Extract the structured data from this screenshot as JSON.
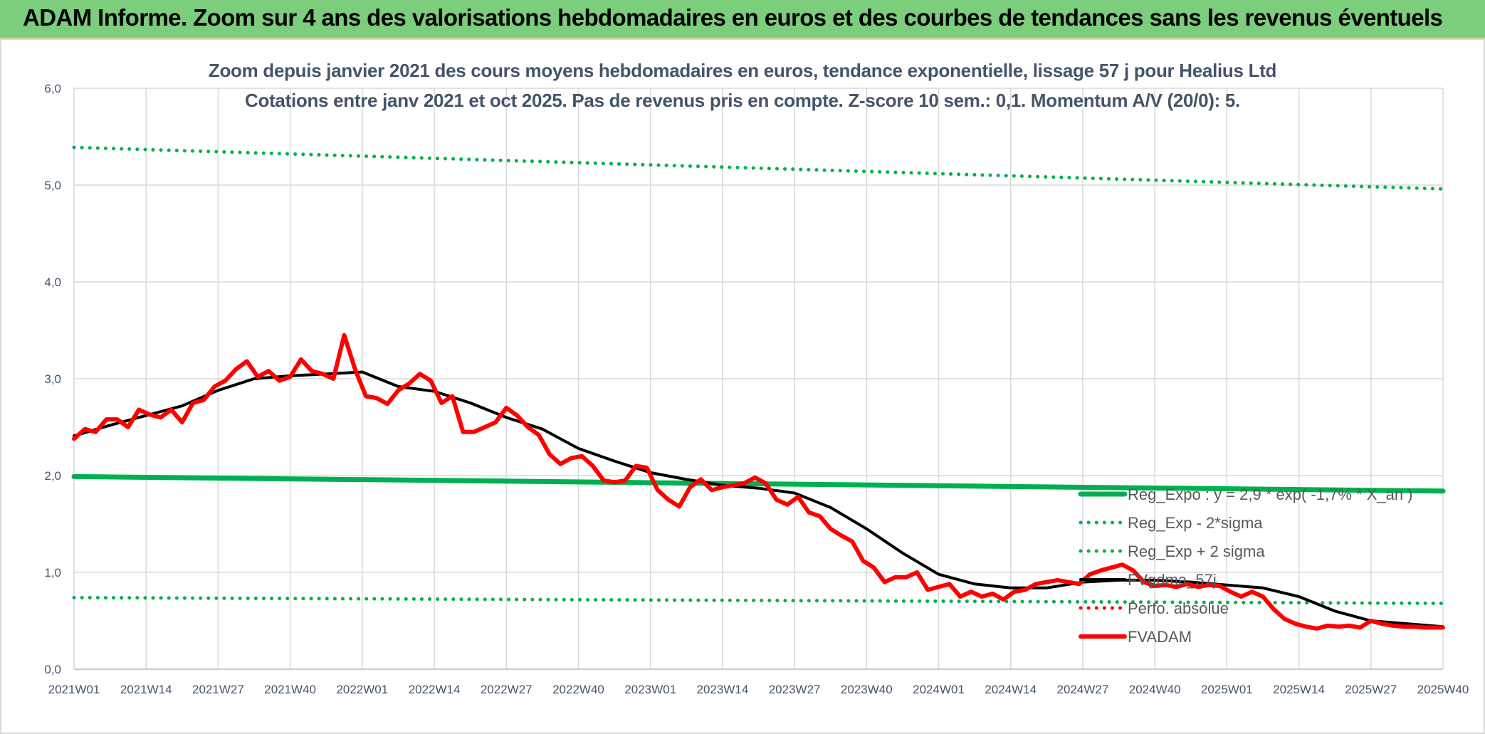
{
  "banner": {
    "title": "ADAM Informe. Zoom sur 4 ans des valorisations hebdomadaires en euros et des courbes de tendances sans les revenus éventuels"
  },
  "chart_data": {
    "type": "line",
    "title": "Zoom depuis janvier 2021 des cours moyens hebdomadaires en euros, tendance exponentielle, lissage 57 j pour Healius Ltd",
    "subtitle": "Cotations entre janv 2021 et oct 2025. Pas de revenus pris en compte. Z-score 10 sem.: 0,1. Momentum A/V (20/0): 5.",
    "xlabel": "",
    "ylabel": "",
    "ylim": [
      0,
      6
    ],
    "y_ticks": [
      "0,0",
      "1,0",
      "2,0",
      "3,0",
      "4,0",
      "5,0",
      "6,0"
    ],
    "categories": [
      "2021W01",
      "2021W14",
      "2021W27",
      "2021W40",
      "2022W01",
      "2022W14",
      "2022W27",
      "2022W40",
      "2023W01",
      "2023W14",
      "2023W27",
      "2023W40",
      "2024W01",
      "2024W14",
      "2024W27",
      "2024W40",
      "2025W01",
      "2025W14",
      "2025W27",
      "2025W40"
    ],
    "grid": true,
    "legend_position": "bottom-right",
    "series": [
      {
        "name": "Reg_Expo : y = 2,9 * exp( -1,7% * X_an )",
        "style": "solid-thick",
        "color": "#00b050",
        "x": [
          0,
          19
        ],
        "values": [
          1.99,
          1.84
        ]
      },
      {
        "name": "Reg_Exp - 2*sigma",
        "style": "dotted",
        "color": "#00b050",
        "x": [
          0,
          19
        ],
        "values": [
          0.74,
          0.68
        ]
      },
      {
        "name": "Reg_Exp + 2 sigma",
        "style": "dotted",
        "color": "#00b050",
        "x": [
          0,
          19
        ],
        "values": [
          5.39,
          4.96
        ]
      },
      {
        "name": "FVgdma_57j",
        "style": "solid",
        "color": "#000000",
        "x": [
          0,
          0.5,
          1,
          1.5,
          2,
          2.5,
          3,
          3.5,
          4,
          4.5,
          5,
          5.5,
          6,
          6.5,
          7,
          7.5,
          8,
          8.5,
          9,
          9.5,
          10,
          10.5,
          11,
          11.5,
          12,
          12.5,
          13,
          13.5,
          14,
          14.5,
          15,
          15.5,
          16,
          16.5,
          17,
          17.5,
          18,
          18.5,
          19
        ],
        "values": [
          2.41,
          2.52,
          2.62,
          2.72,
          2.88,
          3.0,
          3.03,
          3.05,
          3.07,
          2.92,
          2.87,
          2.75,
          2.6,
          2.48,
          2.28,
          2.15,
          2.03,
          1.96,
          1.9,
          1.87,
          1.82,
          1.67,
          1.45,
          1.2,
          0.98,
          0.88,
          0.84,
          0.84,
          0.9,
          0.92,
          0.92,
          0.9,
          0.87,
          0.84,
          0.75,
          0.6,
          0.5,
          0.47,
          0.44
        ]
      },
      {
        "name": "Perfo. absolue",
        "style": "dotted",
        "color": "#ff0000",
        "x": [],
        "values": []
      },
      {
        "name": "FVADAM",
        "style": "solid-thick",
        "color": "#ff0000",
        "x": [
          0,
          0.15,
          0.3,
          0.45,
          0.6,
          0.75,
          0.9,
          1.05,
          1.2,
          1.35,
          1.5,
          1.65,
          1.8,
          1.95,
          2.1,
          2.25,
          2.4,
          2.55,
          2.7,
          2.85,
          3.0,
          3.15,
          3.3,
          3.45,
          3.6,
          3.75,
          3.9,
          4.05,
          4.2,
          4.35,
          4.5,
          4.65,
          4.8,
          4.95,
          5.1,
          5.25,
          5.4,
          5.55,
          5.7,
          5.85,
          6.0,
          6.15,
          6.3,
          6.45,
          6.6,
          6.75,
          6.9,
          7.05,
          7.2,
          7.35,
          7.5,
          7.65,
          7.8,
          7.95,
          8.1,
          8.25,
          8.4,
          8.55,
          8.7,
          8.85,
          9.0,
          9.15,
          9.3,
          9.45,
          9.6,
          9.75,
          9.9,
          10.05,
          10.2,
          10.35,
          10.5,
          10.65,
          10.8,
          10.95,
          11.1,
          11.25,
          11.4,
          11.55,
          11.7,
          11.85,
          12.0,
          12.15,
          12.3,
          12.45,
          12.6,
          12.75,
          12.9,
          13.05,
          13.2,
          13.35,
          13.5,
          13.65,
          13.8,
          13.95,
          14.1,
          14.25,
          14.4,
          14.55,
          14.7,
          14.85,
          15.0,
          15.15,
          15.3,
          15.45,
          15.6,
          15.75,
          15.9,
          16.05,
          16.2,
          16.35,
          16.5,
          16.65,
          16.8,
          16.95,
          17.1,
          17.25,
          17.4,
          17.55,
          17.7,
          17.85,
          18.0,
          18.15,
          18.3,
          18.45,
          18.6,
          18.75,
          18.9,
          19.0
        ],
        "values": [
          2.38,
          2.48,
          2.45,
          2.58,
          2.58,
          2.5,
          2.68,
          2.63,
          2.6,
          2.68,
          2.55,
          2.75,
          2.78,
          2.92,
          2.98,
          3.1,
          3.18,
          3.02,
          3.08,
          2.98,
          3.02,
          3.2,
          3.08,
          3.05,
          3.0,
          3.45,
          3.1,
          2.82,
          2.8,
          2.74,
          2.88,
          2.95,
          3.05,
          2.98,
          2.75,
          2.82,
          2.45,
          2.45,
          2.5,
          2.55,
          2.7,
          2.62,
          2.5,
          2.42,
          2.22,
          2.12,
          2.18,
          2.2,
          2.1,
          1.95,
          1.93,
          1.95,
          2.1,
          2.08,
          1.85,
          1.75,
          1.68,
          1.88,
          1.96,
          1.85,
          1.88,
          1.9,
          1.92,
          1.98,
          1.92,
          1.75,
          1.7,
          1.78,
          1.62,
          1.58,
          1.45,
          1.38,
          1.32,
          1.12,
          1.05,
          0.9,
          0.95,
          0.95,
          1.0,
          0.82,
          0.85,
          0.88,
          0.75,
          0.8,
          0.75,
          0.78,
          0.72,
          0.8,
          0.82,
          0.88,
          0.9,
          0.92,
          0.9,
          0.88,
          0.98,
          1.02,
          1.05,
          1.08,
          1.02,
          0.9,
          0.86,
          0.87,
          0.85,
          0.88,
          0.85,
          0.87,
          0.86,
          0.8,
          0.75,
          0.8,
          0.75,
          0.62,
          0.52,
          0.47,
          0.44,
          0.42,
          0.45,
          0.44,
          0.45,
          0.43,
          0.5,
          0.47,
          0.45,
          0.44,
          0.44,
          0.43,
          0.43,
          0.43
        ]
      }
    ]
  }
}
